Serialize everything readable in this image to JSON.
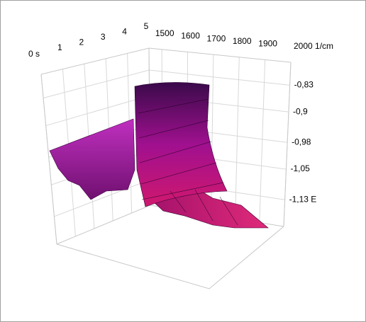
{
  "chart_data": {
    "type": "surface3d",
    "time_ticks": [
      {
        "value": 0,
        "label": "0 s"
      },
      1,
      2,
      3,
      4,
      5
    ],
    "tlim": [
      0,
      5
    ],
    "wavenumber_ticks": [
      1500,
      1600,
      1700,
      1800,
      1900,
      {
        "value": 2000,
        "label": "2000 1/cm"
      }
    ],
    "wlim": [
      1450,
      2000
    ],
    "zticks": [
      {
        "value": -0.83,
        "label": "-0,83"
      },
      {
        "value": -0.9,
        "label": "-0,9"
      },
      {
        "value": -0.98,
        "label": "-0,98"
      },
      {
        "value": -1.05,
        "label": "-1,05"
      },
      {
        "value": -1.13,
        "label": "-1,13 E"
      }
    ],
    "zlim": [
      -1.2,
      -0.77
    ],
    "grid": true
  }
}
